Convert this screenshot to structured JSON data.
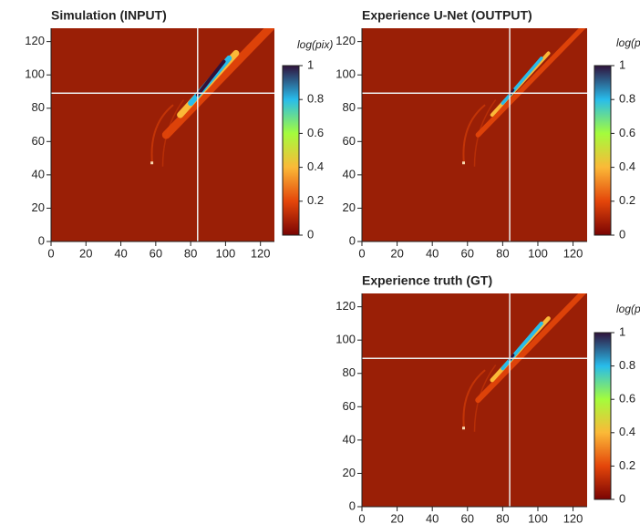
{
  "chart_data": [
    {
      "type": "heatmap",
      "title": "Simulation (INPUT)",
      "xlim": [
        0,
        128
      ],
      "ylim": [
        0,
        128
      ],
      "xticks": [
        0,
        20,
        40,
        60,
        80,
        100,
        120
      ],
      "yticks": [
        0,
        20,
        40,
        60,
        80,
        100,
        120
      ],
      "crosshair": {
        "x": 84,
        "y": 89
      },
      "colorbar": {
        "label": "log(pix)",
        "lim": [
          0,
          1
        ],
        "ticks": [
          0,
          0.2,
          0.4,
          0.6,
          0.8,
          1
        ],
        "colors": [
          "#7a0403",
          "#e4460a",
          "#fbb938",
          "#a4fc3c",
          "#28bceb",
          "#30123b"
        ]
      }
    },
    {
      "type": "heatmap",
      "title": "Experience U-Net (OUTPUT)",
      "xlim": [
        0,
        128
      ],
      "ylim": [
        0,
        128
      ],
      "xticks": [
        0,
        20,
        40,
        60,
        80,
        100,
        120
      ],
      "yticks": [
        0,
        20,
        40,
        60,
        80,
        100,
        120
      ],
      "crosshair": {
        "x": 84,
        "y": 89
      },
      "colorbar": {
        "label": "log(pix)",
        "lim": [
          0,
          1
        ],
        "ticks": [
          0,
          0.2,
          0.4,
          0.6,
          0.8,
          1
        ],
        "colors": [
          "#7a0403",
          "#e4460a",
          "#fbb938",
          "#a4fc3c",
          "#28bceb",
          "#30123b"
        ]
      }
    },
    {
      "type": "heatmap",
      "title": "Experience truth (GT)",
      "xlim": [
        0,
        128
      ],
      "ylim": [
        0,
        128
      ],
      "xticks": [
        0,
        20,
        40,
        60,
        80,
        100,
        120
      ],
      "yticks": [
        0,
        20,
        40,
        60,
        80,
        100,
        120
      ],
      "crosshair": {
        "x": 84,
        "y": 89
      },
      "colorbar": {
        "label": "log(pix)",
        "lim": [
          0,
          1
        ],
        "ticks": [
          0,
          0.2,
          0.4,
          0.6,
          0.8,
          1
        ],
        "colors": [
          "#7a0403",
          "#e4460a",
          "#fbb938",
          "#a4fc3c",
          "#28bceb",
          "#30123b"
        ]
      }
    }
  ]
}
